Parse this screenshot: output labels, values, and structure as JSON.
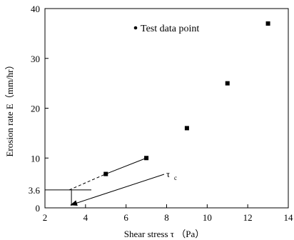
{
  "chart_data": {
    "type": "scatter",
    "title": "",
    "xlabel": "Shear stress τ （Pa）",
    "ylabel": "Erosion rate E（mm/hr）",
    "xlim": [
      2,
      14
    ],
    "ylim": [
      0,
      40
    ],
    "xticks": [
      2,
      4,
      6,
      8,
      10,
      12,
      14
    ],
    "yticks": [
      0,
      10,
      20,
      30,
      40
    ],
    "extra_ytick": "3.6",
    "grid": false,
    "legend": {
      "position": "top-center",
      "marker": "•",
      "label": "Test data point"
    },
    "series": [
      {
        "name": "Test data point",
        "x": [
          5,
          7,
          9,
          11,
          13
        ],
        "y": [
          6.8,
          10,
          16,
          25,
          37
        ]
      }
    ],
    "fit_line": {
      "x": [
        5,
        7
      ],
      "y": [
        6.8,
        10
      ]
    },
    "extrapolation": {
      "x": [
        3.2,
        5
      ],
      "y": [
        3.6,
        6.8
      ]
    },
    "threshold": {
      "label": "τ",
      "subscript": "c",
      "tau_c": 3.2,
      "E": 3.6
    }
  }
}
